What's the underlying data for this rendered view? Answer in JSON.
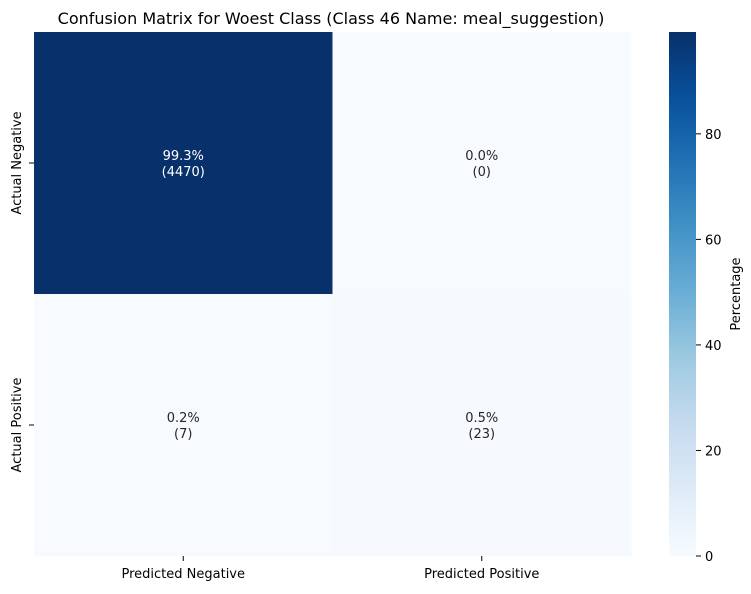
{
  "chart_data": {
    "type": "heatmap",
    "title": "Confusion Matrix for Woest Class (Class 46 Name: meal_suggestion)",
    "row_labels": [
      "Actual Negative",
      "Actual Positive"
    ],
    "column_labels": [
      "Predicted Negative",
      "Predicted Positive"
    ],
    "values": [
      [
        99.3,
        0.0
      ],
      [
        0.2,
        0.5
      ]
    ],
    "counts": [
      [
        4470,
        0
      ],
      [
        7,
        23
      ]
    ],
    "cell_annotations": [
      [
        "99.3%\n(4470)",
        "0.0%\n(0)"
      ],
      [
        "0.2%\n(7)",
        "0.5%\n(23)"
      ]
    ],
    "colormap": "Blues",
    "colorbar": {
      "label": "Percentage",
      "ticks": [
        0,
        20,
        40,
        60,
        80
      ],
      "range": [
        0,
        99.3
      ]
    },
    "colors": {
      "low": "#f7fbff",
      "high": "#08306b",
      "text_on_dark": "#ffffff",
      "text_on_light": "#262626"
    }
  }
}
